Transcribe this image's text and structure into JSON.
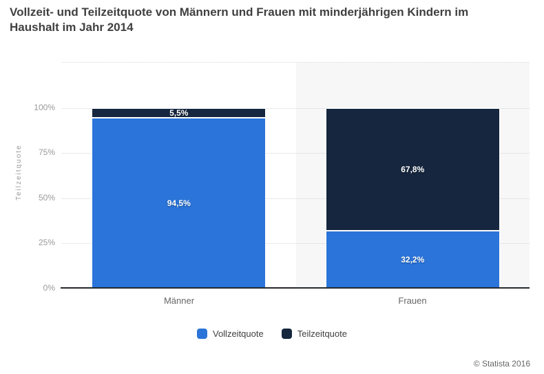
{
  "title": {
    "line1": "Vollzeit- und Teilzeitquote von Männern und Frauen mit minderjährigen Kindern im",
    "line2": "Haushalt im Jahr 2014"
  },
  "chart_data": {
    "type": "bar",
    "subtype": "stacked-column",
    "categories": [
      "Männer",
      "Frauen"
    ],
    "series": [
      {
        "name": "Vollzeitquote",
        "color": "#2b74d9",
        "values": [
          94.5,
          32.2
        ],
        "value_labels": [
          "94,5%",
          "32,2%"
        ]
      },
      {
        "name": "Teilzeitquote",
        "color": "#15263e",
        "values": [
          5.5,
          67.8
        ],
        "value_labels": [
          "5,5%",
          "67,8%"
        ]
      }
    ],
    "ylabel": "Teilzeitquote",
    "yticks": [
      "0%",
      "25%",
      "50%",
      "75%",
      "100%"
    ],
    "ylim": [
      0,
      100
    ],
    "grid": "horizontal-dotted",
    "legend_position": "bottom-center",
    "highlighted_category": "Frauen",
    "highlight_color": "#f7f7f7"
  },
  "footer": {
    "copyright": "© Statista 2016"
  }
}
